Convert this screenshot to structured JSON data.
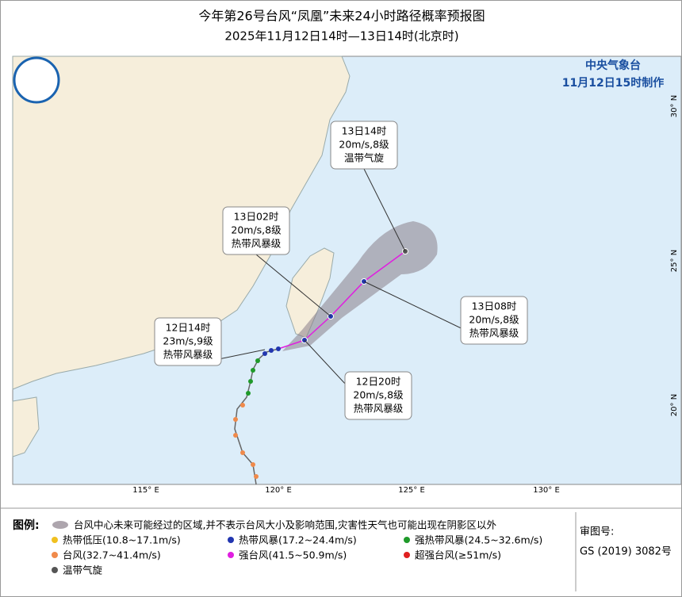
{
  "header": {
    "title": "今年第26号台风“凤凰”未来24小时路径概率预报图",
    "subtitle": "2025年11月12日14时—13日14时(北京时)",
    "agency": "中央气象台",
    "issued": "11月12日15时制作"
  },
  "map": {
    "lon_labels": [
      "115° E",
      "120° E",
      "125° E",
      "130° E"
    ],
    "lat_labels": [
      "30° N",
      "25° N",
      "20° N"
    ],
    "callouts": [
      {
        "lines": [
          "13日14时",
          "20m/s,8级",
          "温带气旋"
        ]
      },
      {
        "lines": [
          "13日02时",
          "20m/s,8级",
          "热带风暴级"
        ]
      },
      {
        "lines": [
          "13日08时",
          "20m/s,8级",
          "热带风暴级"
        ]
      },
      {
        "lines": [
          "12日14时",
          "23m/s,9级",
          "热带风暴级"
        ]
      },
      {
        "lines": [
          "12日20时",
          "20m/s,8级",
          "热带风暴级"
        ]
      }
    ]
  },
  "legend": {
    "title": "图例:",
    "cone": "台风中心未来可能经过的区域,并不表示台风大小及影响范围,灾害性天气也可能出现在阴影区以外",
    "items": [
      {
        "label": "热带低压(10.8~17.1m/s)",
        "color": "#f0c020"
      },
      {
        "label": "热带风暴(17.2~24.4m/s)",
        "color": "#2236b0"
      },
      {
        "label": "强热带风暴(24.5~32.6m/s)",
        "color": "#1f9a2a"
      },
      {
        "label": "台风(32.7~41.4m/s)",
        "color": "#f08a4b"
      },
      {
        "label": "强台风(41.5~50.9m/s)",
        "color": "#e01ee0"
      },
      {
        "label": "超强台风(≥51m/s)",
        "color": "#e02020"
      },
      {
        "label": "温带气旋",
        "color": "#555555"
      }
    ]
  },
  "approval": {
    "label": "审图号:",
    "number": "GS (2019) 3082号"
  }
}
